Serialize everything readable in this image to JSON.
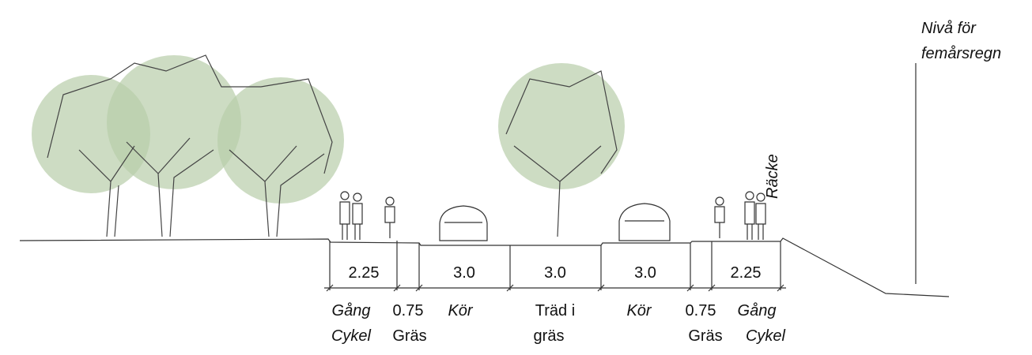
{
  "segments": [
    {
      "dimension": "2.25",
      "label": [
        "Gång",
        "Cykel"
      ]
    },
    {
      "dimension": "0.75",
      "label": [
        "Gräs"
      ]
    },
    {
      "dimension": "3.0",
      "label": [
        "Kör"
      ]
    },
    {
      "dimension": "3.0",
      "label": [
        "Träd i",
        "gräs"
      ]
    },
    {
      "dimension": "3.0",
      "label": [
        "Kör"
      ]
    },
    {
      "dimension": "0.75",
      "label": [
        "Gräs"
      ]
    },
    {
      "dimension": "2.25",
      "label": [
        "Gång",
        "Cykel"
      ]
    }
  ],
  "railing_label": "Räcke",
  "water_level_label": [
    "Nivå för",
    "femårsregn"
  ]
}
